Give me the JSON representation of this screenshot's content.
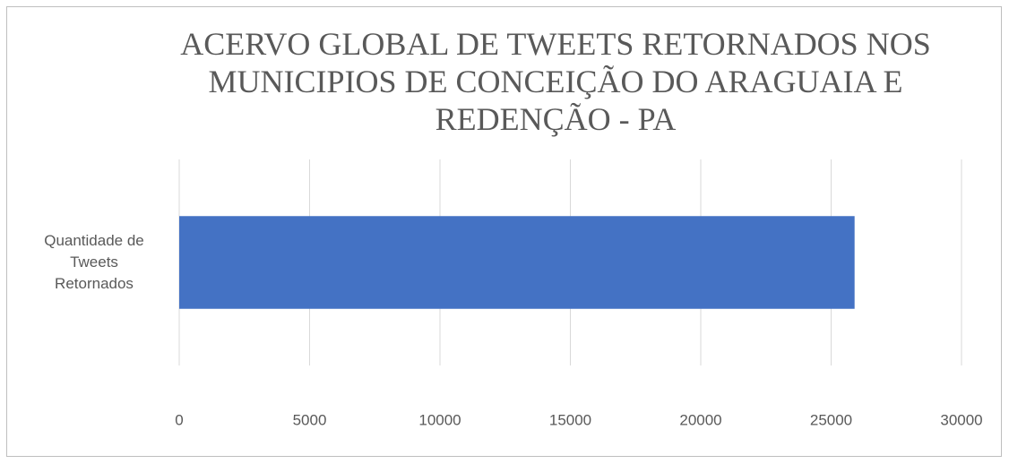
{
  "chart_data": {
    "type": "bar",
    "orientation": "horizontal",
    "title": "ACERVO GLOBAL DE TWEETS RETORNADOS NOS\nMUNICIPIOS DE CONCEIÇÃO DO ARAGUAIA E\nREDENÇÃO - PA",
    "categories": [
      "Quantidade de\nTweets\nRetornados"
    ],
    "values": [
      25900
    ],
    "color": "#4472c4",
    "xlim": [
      0,
      30000
    ],
    "xticks": [
      0,
      5000,
      10000,
      15000,
      20000,
      25000,
      30000
    ],
    "grid": true
  }
}
